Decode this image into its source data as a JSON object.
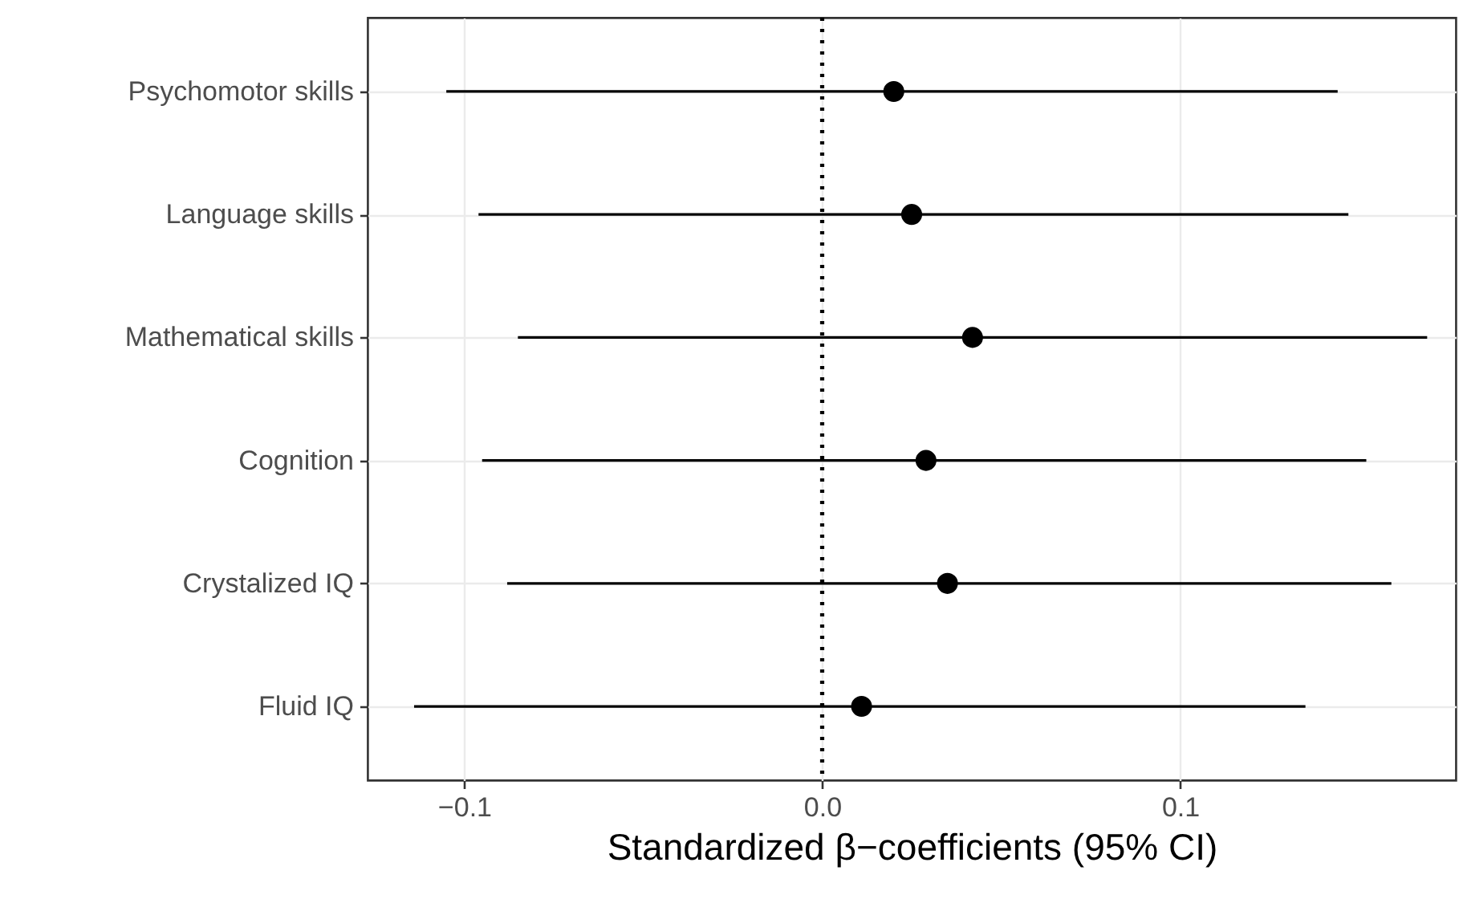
{
  "chart_data": {
    "type": "scatter",
    "orientation": "horizontal",
    "xlabel": "Standardized β−coefficients (95% CI)",
    "categories": [
      "Psychomotor skills",
      "Language skills",
      "Mathematical skills",
      "Cognition",
      "Crystalized IQ",
      "Fluid IQ"
    ],
    "values": [
      0.02,
      0.025,
      0.042,
      0.029,
      0.035,
      0.011
    ],
    "errors": [
      [
        -0.105,
        0.144
      ],
      [
        -0.096,
        0.147
      ],
      [
        -0.085,
        0.169
      ],
      [
        -0.095,
        0.152
      ],
      [
        -0.088,
        0.159
      ],
      [
        -0.114,
        0.135
      ]
    ],
    "color": "#000000",
    "marker": "circle",
    "xlim": [
      -0.127,
      0.177
    ],
    "xticks": [
      {
        "value": -0.1,
        "label": "−0.1"
      },
      {
        "value": 0,
        "label": "0.0"
      },
      {
        "value": 0.1,
        "label": "0.1"
      }
    ],
    "ref_lines": [
      {
        "axis": "x",
        "value": 0,
        "line_style": "dotted",
        "color": "#000000"
      }
    ],
    "grid": true
  }
}
